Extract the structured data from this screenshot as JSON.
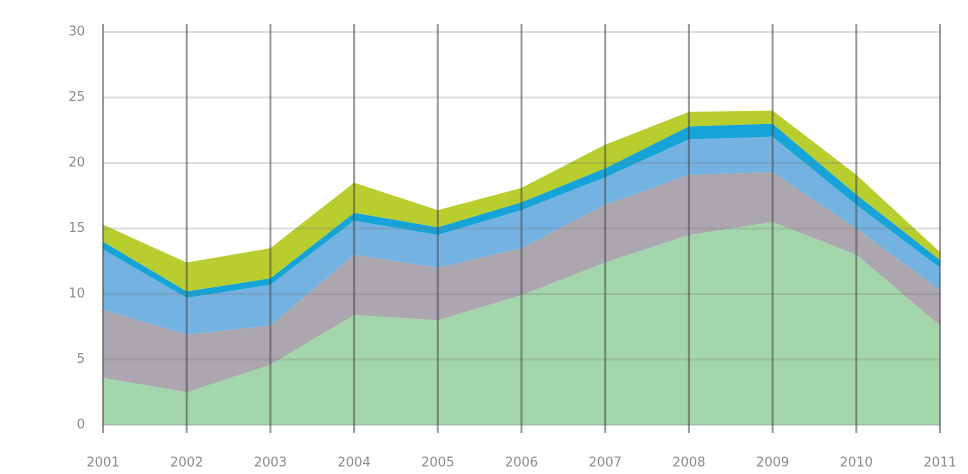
{
  "chart_data": {
    "type": "stacked_area",
    "categories": [
      "2001",
      "2002",
      "2003",
      "2004",
      "2005",
      "2006",
      "2007",
      "2008",
      "2009",
      "2010",
      "2011"
    ],
    "series": [
      {
        "color": "#a3d6aa",
        "values": [
          3.6,
          2.5,
          4.6,
          8.4,
          8.0,
          9.9,
          12.4,
          14.5,
          15.5,
          13.0,
          7.6
        ]
      },
      {
        "color": "#aca6ae",
        "values": [
          5.2,
          4.4,
          3.0,
          4.6,
          4.0,
          3.6,
          4.4,
          4.6,
          3.8,
          2.0,
          2.7
        ]
      },
      {
        "color": "#74b2e2",
        "values": [
          4.6,
          2.8,
          3.1,
          2.6,
          2.5,
          2.9,
          2.1,
          2.7,
          2.7,
          1.8,
          1.7
        ]
      },
      {
        "color": "#16a4d8",
        "values": [
          0.6,
          0.5,
          0.5,
          0.6,
          0.6,
          0.6,
          0.7,
          1.0,
          1.0,
          0.8,
          0.6
        ]
      },
      {
        "color": "#b8cd2e",
        "values": [
          1.3,
          2.2,
          2.3,
          2.3,
          1.3,
          1.1,
          1.8,
          1.1,
          1.0,
          1.5,
          0.6
        ]
      }
    ],
    "ylim": [
      0,
      30
    ],
    "yticks": [
      0,
      5,
      10,
      15,
      20,
      25,
      30
    ],
    "grid": true
  }
}
